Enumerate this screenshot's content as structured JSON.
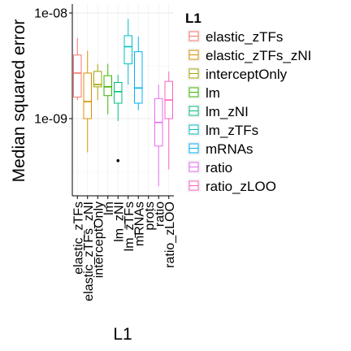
{
  "chart_data": {
    "type": "box",
    "title": "",
    "xlabel": "L1",
    "ylabel": "Median squared error",
    "y_scale": "log10",
    "ylim": [
      2e-10,
      1.2e-08
    ],
    "y_ticks": [
      1e-09,
      1e-08
    ],
    "y_tick_labels": [
      "1e-09",
      "1e-08"
    ],
    "grid": true,
    "legend": {
      "title": "L1",
      "placement": "right"
    },
    "categories": [
      "elastic_zTFs",
      "elastic_zTFs_zNI",
      "interceptOnly",
      "lm",
      "lm_zNI",
      "lm_zTFs",
      "mRNAs",
      "prots",
      "ratio",
      "ratio_zLOO"
    ],
    "series": [
      {
        "name": "elastic_zTFs",
        "color": "#F8766D",
        "whisker_low": 1.5e-09,
        "q1": 1.6e-09,
        "median": 2.7e-09,
        "q3": 4e-09,
        "whisker_high": 5.8e-09,
        "outliers": []
      },
      {
        "name": "elastic_zTFs_zNI",
        "color": "#D89000",
        "whisker_low": 4.8e-10,
        "q1": 1e-09,
        "median": 1.45e-09,
        "q3": 2.7e-09,
        "whisker_high": 4.4e-09,
        "outliers": []
      },
      {
        "name": "interceptOnly",
        "color": "#A3A500",
        "whisker_low": 1.5e-09,
        "q1": 2e-09,
        "median": 2.1e-09,
        "q3": 2.8e-09,
        "whisker_high": 3.3e-09,
        "outliers": []
      },
      {
        "name": "lm",
        "color": "#39B600",
        "whisker_low": 1.1e-09,
        "q1": 1.65e-09,
        "median": 2e-09,
        "q3": 2.55e-09,
        "whisker_high": 3.3e-09,
        "outliers": []
      },
      {
        "name": "lm_zNI",
        "color": "#00BF7D",
        "whisker_low": 9.5e-10,
        "q1": 1.4e-09,
        "median": 1.8e-09,
        "q3": 2.2e-09,
        "whisker_high": 2.6e-09,
        "outliers": [
          4e-10
        ]
      },
      {
        "name": "lm_zTFs",
        "color": "#00BFC4",
        "whisker_low": 2.1e-09,
        "q1": 3.3e-09,
        "median": 4.8e-09,
        "q3": 6.1e-09,
        "whisker_high": 8.8e-09,
        "outliers": []
      },
      {
        "name": "mRNAs",
        "color": "#00B0F6",
        "whisker_low": 1.2e-09,
        "q1": 1.4e-09,
        "median": 1.95e-09,
        "q3": 4.3e-09,
        "whisker_high": 6e-09,
        "outliers": []
      },
      {
        "name": "ratio",
        "color": "#E76BF3",
        "whisker_low": 2.3e-10,
        "q1": 5.5e-10,
        "median": 9.2e-10,
        "q3": 1.55e-09,
        "whisker_high": 2.1e-09,
        "outliers": []
      },
      {
        "name": "ratio_zLOO",
        "color": "#FF62BC",
        "whisker_low": 3.3e-10,
        "q1": 1e-09,
        "median": 1.5e-09,
        "q3": 2.25e-09,
        "whisker_high": 2.8e-09,
        "outliers": []
      }
    ]
  }
}
